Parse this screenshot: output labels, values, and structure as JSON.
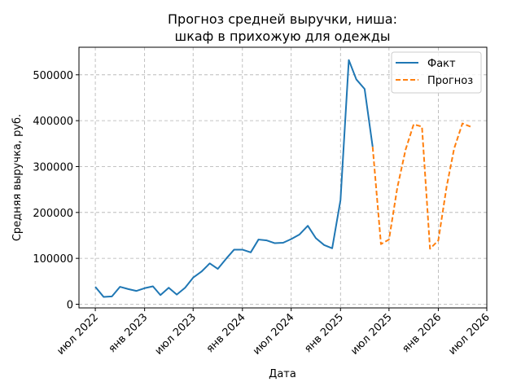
{
  "chart_data": {
    "type": "line",
    "title_lines": [
      "Прогноз средней выручки, ниша:",
      "шкаф в прихожую для одежды"
    ],
    "xlabel": "Дата",
    "ylabel": "Средняя выручка, руб.",
    "grid": true,
    "legend_position": "top-right",
    "xlim": [
      "2022-05-01",
      "2026-07-01"
    ],
    "ylim": [
      -8000,
      560000
    ],
    "y_ticks": [
      0,
      100000,
      200000,
      300000,
      400000,
      500000
    ],
    "x_ticks": [
      {
        "date": "2022-07-01",
        "label": "июл 2022"
      },
      {
        "date": "2023-01-01",
        "label": "янв 2023"
      },
      {
        "date": "2023-07-01",
        "label": "июл 2023"
      },
      {
        "date": "2024-01-01",
        "label": "янв 2024"
      },
      {
        "date": "2024-07-01",
        "label": "июл 2024"
      },
      {
        "date": "2025-01-01",
        "label": "янв 2025"
      },
      {
        "date": "2025-07-01",
        "label": "июл 2025"
      },
      {
        "date": "2026-01-01",
        "label": "янв 2026"
      },
      {
        "date": "2026-07-01",
        "label": "июл 2026"
      }
    ],
    "series": [
      {
        "name": "Факт",
        "color": "#1f77b4",
        "style": "solid",
        "points": [
          [
            "2022-07-01",
            38000
          ],
          [
            "2022-08-01",
            16000
          ],
          [
            "2022-09-01",
            17000
          ],
          [
            "2022-10-01",
            38000
          ],
          [
            "2022-11-01",
            33000
          ],
          [
            "2022-12-01",
            29000
          ],
          [
            "2023-01-01",
            35000
          ],
          [
            "2023-02-01",
            39000
          ],
          [
            "2023-03-01",
            20000
          ],
          [
            "2023-04-01",
            36000
          ],
          [
            "2023-05-01",
            21000
          ],
          [
            "2023-06-01",
            36000
          ],
          [
            "2023-07-01",
            58000
          ],
          [
            "2023-08-01",
            71000
          ],
          [
            "2023-09-01",
            89000
          ],
          [
            "2023-10-01",
            77000
          ],
          [
            "2023-11-01",
            99000
          ],
          [
            "2023-12-01",
            119000
          ],
          [
            "2024-01-01",
            119000
          ],
          [
            "2024-02-01",
            113000
          ],
          [
            "2024-03-01",
            141000
          ],
          [
            "2024-04-01",
            139000
          ],
          [
            "2024-05-01",
            133000
          ],
          [
            "2024-06-01",
            134000
          ],
          [
            "2024-07-01",
            142000
          ],
          [
            "2024-08-01",
            152000
          ],
          [
            "2024-09-01",
            171000
          ],
          [
            "2024-10-01",
            144000
          ],
          [
            "2024-11-01",
            129000
          ],
          [
            "2024-12-01",
            122000
          ],
          [
            "2025-01-01",
            227000
          ],
          [
            "2025-02-01",
            532000
          ],
          [
            "2025-03-01",
            490000
          ],
          [
            "2025-04-01",
            469000
          ],
          [
            "2025-05-01",
            343000
          ]
        ]
      },
      {
        "name": "Прогноз",
        "color": "#ff7f0e",
        "style": "dashed",
        "points": [
          [
            "2025-05-01",
            343000
          ],
          [
            "2025-06-01",
            131000
          ],
          [
            "2025-07-01",
            141000
          ],
          [
            "2025-08-01",
            254000
          ],
          [
            "2025-09-01",
            337000
          ],
          [
            "2025-10-01",
            392000
          ],
          [
            "2025-11-01",
            387000
          ],
          [
            "2025-12-01",
            121000
          ],
          [
            "2026-01-01",
            139000
          ],
          [
            "2026-02-01",
            256000
          ],
          [
            "2026-03-01",
            339000
          ],
          [
            "2026-04-01",
            394000
          ],
          [
            "2026-05-01",
            387000
          ]
        ]
      }
    ]
  }
}
